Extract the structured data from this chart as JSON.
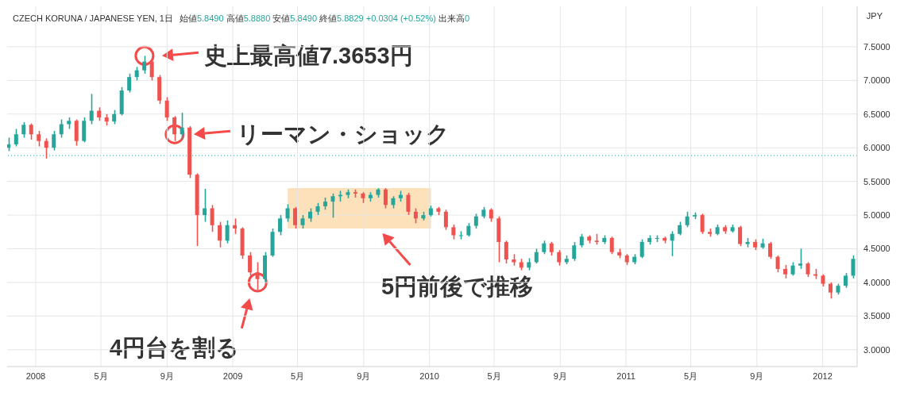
{
  "chart_data": {
    "type": "candlestick",
    "title": "CZECH KORUNA / JAPANESE YEN, 1日",
    "subtitle": "始値5.8490 高値5.8880 安値5.8490 終値5.8829 +0.0304 (+0.52%) 出来高0",
    "ylabel": "JPY",
    "x": [
      "2007-11-12",
      "2007-11-26",
      "2007-12-10",
      "2007-12-24",
      "2008-01-07",
      "2008-01-21",
      "2008-02-04",
      "2008-02-18",
      "2008-03-03",
      "2008-03-17",
      "2008-03-31",
      "2008-04-14",
      "2008-04-28",
      "2008-05-12",
      "2008-05-26",
      "2008-06-09",
      "2008-06-23",
      "2008-07-07",
      "2008-07-21",
      "2008-08-04",
      "2008-08-18",
      "2008-09-01",
      "2008-09-15",
      "2008-09-29",
      "2008-10-13",
      "2008-10-27",
      "2008-11-10",
      "2008-11-24",
      "2008-12-08",
      "2008-12-22",
      "2009-01-05",
      "2009-01-19",
      "2009-02-02",
      "2009-02-16",
      "2009-03-02",
      "2009-03-16",
      "2009-03-30",
      "2009-04-13",
      "2009-04-27",
      "2009-05-11",
      "2009-05-25",
      "2009-06-08",
      "2009-06-22",
      "2009-07-06",
      "2009-07-20",
      "2009-08-03",
      "2009-08-17",
      "2009-08-31",
      "2009-09-14",
      "2009-09-28",
      "2009-10-12",
      "2009-10-26",
      "2009-11-09",
      "2009-11-23",
      "2009-12-07",
      "2009-12-21",
      "2010-01-04",
      "2010-01-18",
      "2010-02-01",
      "2010-02-15",
      "2010-03-01",
      "2010-03-15",
      "2010-03-29",
      "2010-04-12",
      "2010-04-26",
      "2010-05-10",
      "2010-05-24",
      "2010-06-07",
      "2010-06-21",
      "2010-07-05",
      "2010-07-19",
      "2010-08-02",
      "2010-08-16",
      "2010-08-30",
      "2010-09-13",
      "2010-09-27",
      "2010-10-11",
      "2010-10-25",
      "2010-11-08",
      "2010-11-22",
      "2010-12-06",
      "2010-12-20",
      "2011-01-03",
      "2011-01-17",
      "2011-01-31",
      "2011-02-14",
      "2011-02-28",
      "2011-03-14",
      "2011-03-28",
      "2011-04-11",
      "2011-04-25",
      "2011-05-09",
      "2011-05-23",
      "2011-06-06",
      "2011-06-20",
      "2011-07-04",
      "2011-07-18",
      "2011-08-01",
      "2011-08-15",
      "2011-08-29",
      "2011-09-12",
      "2011-09-26",
      "2011-10-10",
      "2011-10-24",
      "2011-11-07",
      "2011-11-21",
      "2011-12-05",
      "2011-12-19",
      "2012-01-02",
      "2012-01-16",
      "2012-01-30",
      "2012-02-13",
      "2012-02-27"
    ],
    "ohlc": [
      [
        6.0,
        6.15,
        5.95,
        6.05
      ],
      [
        6.05,
        6.28,
        6.02,
        6.2
      ],
      [
        6.2,
        6.38,
        6.15,
        6.34
      ],
      [
        6.34,
        6.36,
        6.12,
        6.2
      ],
      [
        6.2,
        6.25,
        6.02,
        6.1
      ],
      [
        6.1,
        6.14,
        5.84,
        6.0
      ],
      [
        6.0,
        6.25,
        5.96,
        6.2
      ],
      [
        6.2,
        6.42,
        6.15,
        6.35
      ],
      [
        6.35,
        6.45,
        6.28,
        6.4
      ],
      [
        6.4,
        6.42,
        6.03,
        6.1
      ],
      [
        6.1,
        6.45,
        6.08,
        6.4
      ],
      [
        6.4,
        6.8,
        6.35,
        6.55
      ],
      [
        6.55,
        6.6,
        6.4,
        6.45
      ],
      [
        6.45,
        6.5,
        6.33,
        6.39
      ],
      [
        6.39,
        6.56,
        6.35,
        6.5
      ],
      [
        6.5,
        6.9,
        6.48,
        6.85
      ],
      [
        6.85,
        7.1,
        6.82,
        7.05
      ],
      [
        7.05,
        7.2,
        7.0,
        7.15
      ],
      [
        7.15,
        7.3653,
        7.1,
        7.28
      ],
      [
        7.28,
        7.3,
        7.0,
        7.05
      ],
      [
        7.05,
        7.08,
        6.65,
        6.7
      ],
      [
        6.7,
        6.75,
        6.4,
        6.45
      ],
      [
        6.45,
        6.47,
        6.1,
        6.2
      ],
      [
        6.2,
        6.52,
        6.12,
        6.3
      ],
      [
        6.3,
        6.32,
        5.55,
        5.6
      ],
      [
        5.6,
        5.62,
        4.54,
        5.0
      ],
      [
        5.0,
        5.39,
        4.9,
        5.1
      ],
      [
        5.1,
        5.15,
        4.75,
        4.85
      ],
      [
        4.85,
        4.9,
        4.52,
        4.62
      ],
      [
        4.62,
        4.92,
        4.58,
        4.85
      ],
      [
        4.85,
        4.95,
        4.72,
        4.8
      ],
      [
        4.8,
        4.82,
        4.35,
        4.4
      ],
      [
        4.4,
        4.45,
        4.1,
        4.15
      ],
      [
        4.15,
        4.3,
        3.89,
        4.05
      ],
      [
        4.05,
        4.45,
        4.0,
        4.4
      ],
      [
        4.4,
        4.8,
        4.38,
        4.75
      ],
      [
        4.75,
        5.0,
        4.7,
        4.95
      ],
      [
        4.95,
        5.16,
        4.9,
        5.1
      ],
      [
        5.1,
        5.12,
        4.8,
        4.85
      ],
      [
        4.85,
        5.0,
        4.8,
        4.95
      ],
      [
        4.95,
        5.1,
        4.9,
        5.05
      ],
      [
        5.05,
        5.18,
        5.0,
        5.13
      ],
      [
        5.13,
        5.26,
        5.08,
        5.2
      ],
      [
        5.2,
        5.32,
        4.96,
        5.28
      ],
      [
        5.28,
        5.36,
        5.2,
        5.3
      ],
      [
        5.3,
        5.38,
        5.25,
        5.34
      ],
      [
        5.34,
        5.38,
        5.26,
        5.32
      ],
      [
        5.32,
        5.34,
        5.18,
        5.25
      ],
      [
        5.25,
        5.34,
        5.2,
        5.3
      ],
      [
        5.3,
        5.4,
        5.26,
        5.38
      ],
      [
        5.38,
        5.4,
        5.1,
        5.15
      ],
      [
        5.15,
        5.28,
        5.1,
        5.25
      ],
      [
        5.25,
        5.36,
        5.2,
        5.3
      ],
      [
        5.3,
        5.33,
        5.0,
        5.05
      ],
      [
        5.05,
        5.1,
        4.88,
        4.95
      ],
      [
        4.95,
        5.05,
        4.92,
        5.0
      ],
      [
        5.0,
        5.14,
        4.98,
        5.1
      ],
      [
        5.1,
        5.12,
        5.0,
        5.05
      ],
      [
        5.05,
        5.08,
        4.78,
        4.82
      ],
      [
        4.82,
        4.86,
        4.64,
        4.7
      ],
      [
        4.7,
        4.76,
        4.64,
        4.7
      ],
      [
        4.7,
        4.88,
        4.68,
        4.84
      ],
      [
        4.84,
        5.02,
        4.8,
        4.98
      ],
      [
        4.98,
        5.12,
        4.95,
        5.08
      ],
      [
        5.08,
        5.1,
        4.9,
        4.95
      ],
      [
        4.95,
        4.98,
        4.3,
        4.6
      ],
      [
        4.6,
        4.62,
        4.28,
        4.34
      ],
      [
        4.34,
        4.42,
        4.25,
        4.3
      ],
      [
        4.3,
        4.35,
        4.18,
        4.22
      ],
      [
        4.22,
        4.36,
        4.18,
        4.3
      ],
      [
        4.3,
        4.5,
        4.28,
        4.45
      ],
      [
        4.45,
        4.62,
        4.42,
        4.58
      ],
      [
        4.58,
        4.6,
        4.4,
        4.45
      ],
      [
        4.45,
        4.48,
        4.25,
        4.3
      ],
      [
        4.3,
        4.4,
        4.27,
        4.35
      ],
      [
        4.35,
        4.6,
        4.32,
        4.55
      ],
      [
        4.55,
        4.72,
        4.52,
        4.68
      ],
      [
        4.68,
        4.7,
        4.58,
        4.62
      ],
      [
        4.62,
        4.72,
        4.56,
        4.6
      ],
      [
        4.6,
        4.7,
        4.57,
        4.66
      ],
      [
        4.66,
        4.68,
        4.42,
        4.45
      ],
      [
        4.45,
        4.5,
        4.36,
        4.4
      ],
      [
        4.4,
        4.42,
        4.26,
        4.3
      ],
      [
        4.3,
        4.42,
        4.27,
        4.38
      ],
      [
        4.38,
        4.64,
        4.36,
        4.6
      ],
      [
        4.6,
        4.7,
        4.56,
        4.66
      ],
      [
        4.66,
        4.7,
        4.6,
        4.66
      ],
      [
        4.66,
        4.68,
        4.58,
        4.62
      ],
      [
        4.62,
        4.76,
        4.39,
        4.72
      ],
      [
        4.72,
        4.9,
        4.7,
        4.85
      ],
      [
        4.85,
        5.05,
        4.82,
        4.98
      ],
      [
        4.98,
        5.04,
        4.94,
        5.0
      ],
      [
        5.0,
        5.02,
        4.72,
        4.75
      ],
      [
        4.75,
        4.8,
        4.68,
        4.72
      ],
      [
        4.72,
        4.86,
        4.7,
        4.82
      ],
      [
        4.82,
        4.85,
        4.72,
        4.76
      ],
      [
        4.76,
        4.86,
        4.74,
        4.82
      ],
      [
        4.82,
        4.84,
        4.54,
        4.57
      ],
      [
        4.57,
        4.66,
        4.52,
        4.6
      ],
      [
        4.6,
        4.64,
        4.48,
        4.52
      ],
      [
        4.52,
        4.65,
        4.5,
        4.58
      ],
      [
        4.58,
        4.6,
        4.35,
        4.38
      ],
      [
        4.38,
        4.4,
        4.15,
        4.2
      ],
      [
        4.2,
        4.26,
        4.06,
        4.12
      ],
      [
        4.12,
        4.3,
        4.1,
        4.25
      ],
      [
        4.25,
        4.5,
        4.2,
        4.28
      ],
      [
        4.28,
        4.3,
        4.08,
        4.12
      ],
      [
        4.12,
        4.2,
        4.05,
        4.1
      ],
      [
        4.1,
        4.12,
        3.94,
        3.98
      ],
      [
        3.98,
        4.0,
        3.76,
        3.85
      ],
      [
        3.85,
        3.98,
        3.82,
        3.95
      ],
      [
        3.95,
        4.14,
        3.92,
        4.1
      ],
      [
        4.1,
        4.4,
        4.06,
        4.35
      ]
    ],
    "xlim": [
      "2007-11-09",
      "2012-03-05"
    ],
    "xticks": [
      {
        "value": "2008-01-01",
        "label": "2008"
      },
      {
        "value": "2008-05-01",
        "label": "5月"
      },
      {
        "value": "2008-09-01",
        "label": "9月"
      },
      {
        "value": "2009-01-01",
        "label": "2009"
      },
      {
        "value": "2009-05-01",
        "label": "5月"
      },
      {
        "value": "2009-09-01",
        "label": "9月"
      },
      {
        "value": "2010-01-01",
        "label": "2010"
      },
      {
        "value": "2010-05-01",
        "label": "5月"
      },
      {
        "value": "2010-09-01",
        "label": "9月"
      },
      {
        "value": "2011-01-01",
        "label": "2011"
      },
      {
        "value": "2011-05-01",
        "label": "5月"
      },
      {
        "value": "2011-09-01",
        "label": "9月"
      },
      {
        "value": "2012-01-01",
        "label": "2012"
      }
    ],
    "ylim": [
      2.75,
      8.1
    ],
    "yticks": [
      {
        "value": 3,
        "label": "3.0000"
      },
      {
        "value": 3.5,
        "label": "3.5000"
      },
      {
        "value": 4,
        "label": "4.0000"
      },
      {
        "value": 4.5,
        "label": "4.5000"
      },
      {
        "value": 5,
        "label": "5.0000"
      },
      {
        "value": 5.5,
        "label": "5.5000"
      },
      {
        "value": 6,
        "label": "6.0000"
      },
      {
        "value": 6.5,
        "label": "6.5000"
      },
      {
        "value": 7,
        "label": "7.0000"
      },
      {
        "value": 7.5,
        "label": "7.5000"
      }
    ],
    "grid": true,
    "ref_lines": [
      {
        "axis": "y",
        "value": 5.8829,
        "color": "#26a69a",
        "line_style": "dotted"
      }
    ],
    "bands": [
      {
        "axis": "x",
        "from": "2009-04-13",
        "to": "2010-01-04",
        "label": "5円前後で推移",
        "color": "#fbd49c"
      }
    ],
    "annotations": [
      {
        "text": "史上最高値7.3653円",
        "x": "2008-07-21",
        "y": 7.3653
      },
      {
        "text": "リーマン・ショック",
        "x": "2008-09-15",
        "y": 6.2
      },
      {
        "text": "4円台を割る",
        "x": "2009-02-16",
        "y": 4.0
      }
    ]
  }
}
